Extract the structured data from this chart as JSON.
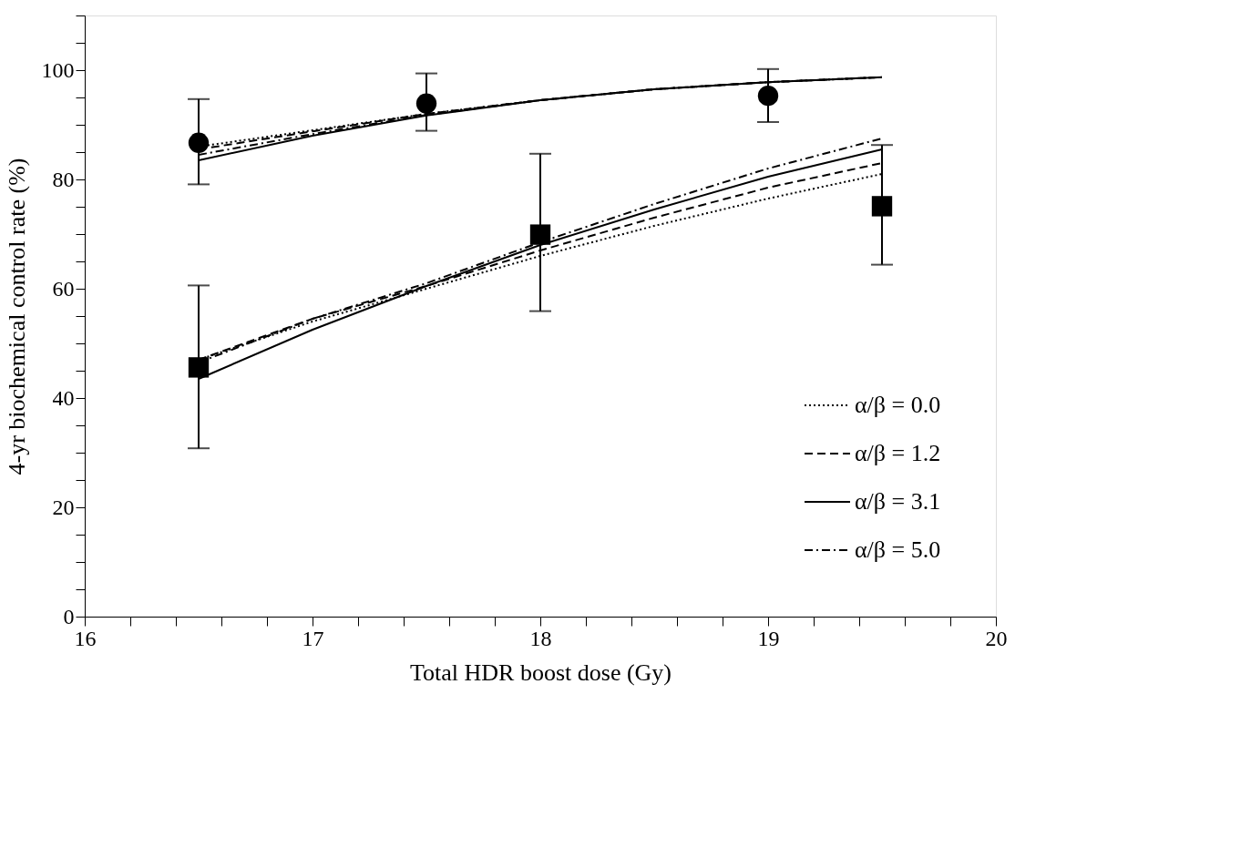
{
  "chart_data": {
    "type": "line",
    "xlabel": "Total HDR boost dose (Gy)",
    "ylabel": "4-yr biochemical control rate (%)",
    "xlim": [
      16,
      20
    ],
    "ylim": [
      0,
      110
    ],
    "xticks": [
      16,
      {
        "value": 16.2,
        "label": null
      },
      {
        "value": 16.4,
        "label": null
      },
      {
        "value": 16.6,
        "label": null
      },
      {
        "value": 16.8,
        "label": null
      },
      17,
      {
        "value": 17.2,
        "label": null
      },
      {
        "value": 17.4,
        "label": null
      },
      {
        "value": 17.6,
        "label": null
      },
      {
        "value": 17.8,
        "label": null
      },
      18,
      {
        "value": 18.2,
        "label": null
      },
      {
        "value": 18.4,
        "label": null
      },
      {
        "value": 18.6,
        "label": null
      },
      {
        "value": 18.8,
        "label": null
      },
      19,
      {
        "value": 19.2,
        "label": null
      },
      {
        "value": 19.4,
        "label": null
      },
      {
        "value": 19.6,
        "label": null
      },
      {
        "value": 19.8,
        "label": null
      },
      20
    ],
    "yticks": [
      0,
      {
        "value": 5,
        "label": null
      },
      {
        "value": 10,
        "label": null
      },
      {
        "value": 15,
        "label": null
      },
      20,
      {
        "value": 25,
        "label": null
      },
      {
        "value": 30,
        "label": null
      },
      {
        "value": 35,
        "label": null
      },
      40,
      {
        "value": 45,
        "label": null
      },
      {
        "value": 50,
        "label": null
      },
      {
        "value": 55,
        "label": null
      },
      60,
      {
        "value": 65,
        "label": null
      },
      {
        "value": 70,
        "label": null
      },
      {
        "value": 75,
        "label": null
      },
      80,
      {
        "value": 85,
        "label": null
      },
      {
        "value": 90,
        "label": null
      },
      {
        "value": 95,
        "label": null
      },
      100,
      {
        "value": 105,
        "label": null
      },
      {
        "value": 110,
        "label": null
      }
    ],
    "grid": false,
    "legend": "bottom right",
    "series": [
      {
        "name": "α/β = 0.0",
        "type": "line",
        "line_style": "dotted",
        "color": "#000000",
        "x": [
          16.5,
          17,
          17.5,
          18,
          18.5,
          19,
          19.5
        ],
        "values": [
          47,
          54,
          60,
          66,
          71.5,
          76.5,
          81
        ]
      },
      {
        "name": "α/β = 1.2",
        "type": "line",
        "line_style": "dashed",
        "color": "#000000",
        "x": [
          16.5,
          17,
          17.5,
          18,
          18.5,
          19,
          19.5
        ],
        "values": [
          47,
          54.5,
          60.5,
          67,
          73,
          78.5,
          83
        ]
      },
      {
        "name": "α/β = 3.1",
        "type": "line",
        "line_style": "solid",
        "color": "#000000",
        "x": [
          16.5,
          17,
          17.5,
          18,
          18.5,
          19,
          19.5
        ],
        "values": [
          43.5,
          52.5,
          60.5,
          68,
          74.5,
          80.5,
          85.5
        ]
      },
      {
        "name": "α/β = 5.0",
        "type": "line",
        "line_style": "dashdot",
        "color": "#000000",
        "x": [
          16.5,
          17,
          17.5,
          18,
          18.5,
          19,
          19.5
        ],
        "values": [
          46.5,
          54.5,
          61,
          68.5,
          75.5,
          82,
          87.5
        ]
      },
      {
        "type": "line",
        "line_style": "dotted",
        "color": "#000000",
        "x": [
          16.5,
          17,
          17.5,
          18,
          18.5,
          19,
          19.5
        ],
        "values": [
          86,
          89,
          92,
          94.5,
          96.5,
          97.8,
          98.7
        ]
      },
      {
        "type": "line",
        "line_style": "dashed",
        "color": "#000000",
        "x": [
          16.5,
          17,
          17.5,
          18,
          18.5,
          19,
          19.5
        ],
        "values": [
          85.5,
          88.8,
          92,
          94.5,
          96.5,
          97.8,
          98.7
        ]
      },
      {
        "type": "line",
        "line_style": "solid",
        "color": "#000000",
        "x": [
          16.5,
          17,
          17.5,
          18,
          18.5,
          19,
          19.5
        ],
        "values": [
          83.5,
          88,
          91.7,
          94.5,
          96.5,
          97.8,
          98.7
        ]
      },
      {
        "type": "line",
        "line_style": "dashdot",
        "color": "#000000",
        "x": [
          16.5,
          17,
          17.5,
          18,
          18.5,
          19,
          19.5
        ],
        "values": [
          84.5,
          88.3,
          91.8,
          94.5,
          96.5,
          97.8,
          98.7
        ]
      },
      {
        "type": "scatter",
        "marker": "circle",
        "color": "#000000",
        "x": [
          16.5,
          17.5,
          19
        ],
        "values": [
          86.7,
          93.9,
          95.3
        ],
        "errors": [
          [
            79.1,
            94.7
          ],
          [
            88.9,
            99.4
          ],
          [
            90.5,
            100.2
          ]
        ]
      },
      {
        "type": "scatter",
        "marker": "square",
        "color": "#000000",
        "x": [
          16.5,
          18,
          19.5
        ],
        "values": [
          45.6,
          69.9,
          75.1
        ],
        "errors": [
          [
            30.8,
            60.6
          ],
          [
            55.9,
            84.7
          ],
          [
            64.4,
            86.3
          ]
        ]
      }
    ]
  }
}
